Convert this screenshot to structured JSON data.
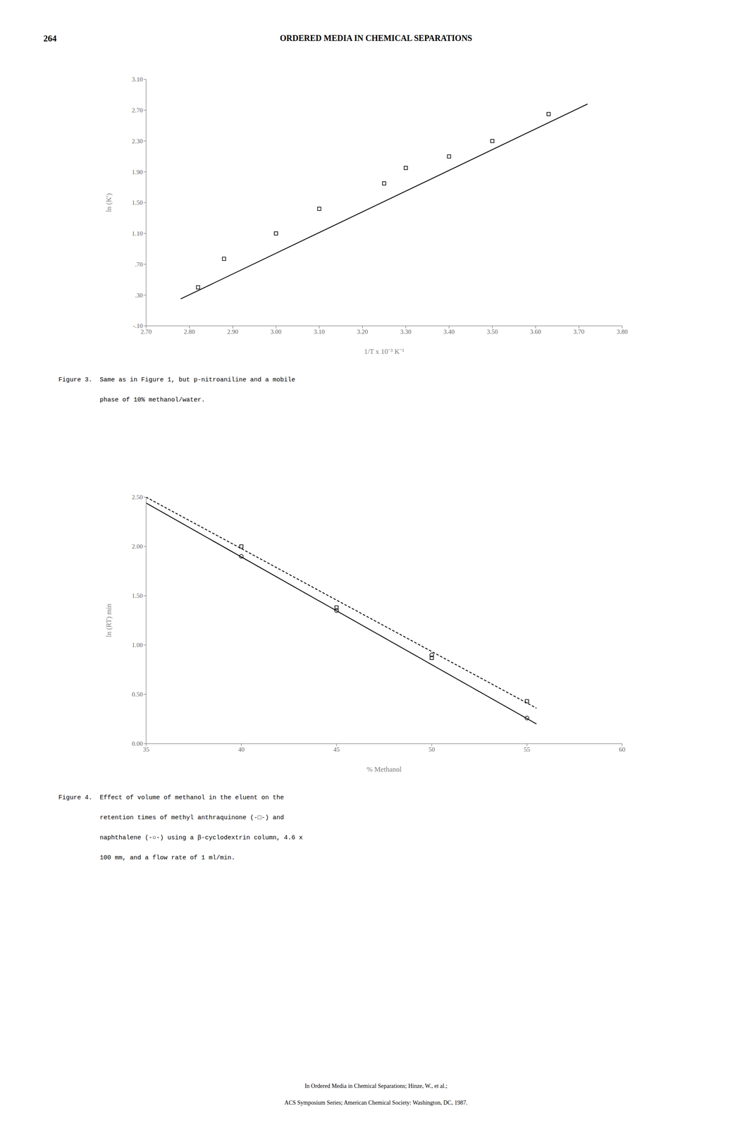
{
  "page_number": "264",
  "header": "ORDERED MEDIA IN CHEMICAL SEPARATIONS",
  "footer": [
    "In Ordered Media in Chemical Separations; Hinze, W., et al.;",
    "ACS Symposium Series; American Chemical Society: Washington, DC, 1987."
  ],
  "chart_data": [
    {
      "type": "scatter",
      "xlabel": "1/T x 10⁻³ K⁻¹",
      "ylabel": "ln (Kʹ)",
      "grid": false,
      "xlim": [
        2.7,
        3.8
      ],
      "xticks": [
        {
          "value": 2.7,
          "label": "2.70"
        },
        {
          "value": 2.8,
          "label": "2.80"
        },
        {
          "value": 2.9,
          "label": "2.90"
        },
        {
          "value": 3.0,
          "label": "3.00"
        },
        {
          "value": 3.1,
          "label": "3.10"
        },
        {
          "value": 3.2,
          "label": "3.20"
        },
        {
          "value": 3.3,
          "label": "3.30"
        },
        {
          "value": 3.4,
          "label": "3.40"
        },
        {
          "value": 3.5,
          "label": "3.50"
        },
        {
          "value": 3.6,
          "label": "3.60"
        },
        {
          "value": 3.7,
          "label": "3.70"
        },
        {
          "value": 3.8,
          "label": "3.80"
        }
      ],
      "ylim": [
        -0.1,
        3.1
      ],
      "yticks": [
        {
          "value": -0.1,
          "label": "-.10"
        },
        {
          "value": 0.3,
          "label": ".30"
        },
        {
          "value": 0.7,
          "label": ".70"
        },
        {
          "value": 1.1,
          "label": "1.10"
        },
        {
          "value": 1.5,
          "label": "1.50"
        },
        {
          "value": 1.9,
          "label": "1.90"
        },
        {
          "value": 2.3,
          "label": "2.30"
        },
        {
          "value": 2.7,
          "label": "2.70"
        },
        {
          "value": 3.1,
          "label": "3.10"
        }
      ],
      "series": [
        {
          "type": "line",
          "line_style": "solid",
          "color": "#000000",
          "x": [
            2.78,
            3.72
          ],
          "values": [
            0.25,
            2.78
          ]
        },
        {
          "type": "scatter",
          "marker": "square",
          "color": "#000000",
          "x": [
            2.82,
            2.88,
            3.0,
            3.1,
            3.25,
            3.3,
            3.4,
            3.5,
            3.63
          ],
          "values": [
            0.4,
            0.77,
            1.1,
            1.42,
            1.75,
            1.95,
            2.1,
            2.3,
            2.65
          ]
        }
      ],
      "annotations": [
        "Figure 3.  Same as in Figure 1, but p-nitroaniline and a mobile",
        "           phase of 10% methanol/water."
      ]
    },
    {
      "type": "scatter",
      "xlabel": "% Methanol",
      "ylabel": "ln (RT) min",
      "grid": false,
      "xlim": [
        35,
        60
      ],
      "xticks": [
        35,
        40,
        45,
        50,
        55,
        60
      ],
      "ylim": [
        0.0,
        2.5
      ],
      "yticks": [
        {
          "value": 0.0,
          "label": "0.00"
        },
        {
          "value": 0.5,
          "label": "0.50"
        },
        {
          "value": 1.0,
          "label": "1.00"
        },
        {
          "value": 1.5,
          "label": "1.50"
        },
        {
          "value": 2.0,
          "label": "2.00"
        },
        {
          "value": 2.5,
          "label": "2.50"
        }
      ],
      "series": [
        {
          "type": "line",
          "line_style": "solid",
          "color": "#000000",
          "x": [
            35.0,
            55.5
          ],
          "values": [
            2.44,
            0.2
          ]
        },
        {
          "type": "scatter",
          "marker": "circle",
          "color": "#000000",
          "x": [
            40,
            45,
            50,
            55
          ],
          "values": [
            1.9,
            1.35,
            0.9,
            0.26
          ]
        },
        {
          "type": "line",
          "line_style": "dashed",
          "color": "#000000",
          "x": [
            35.0,
            55.5
          ],
          "values": [
            2.5,
            0.36
          ]
        },
        {
          "type": "scatter",
          "marker": "square",
          "color": "#000000",
          "x": [
            40,
            45,
            50,
            55
          ],
          "values": [
            2.0,
            1.38,
            0.87,
            0.43
          ]
        }
      ],
      "annotations": [
        "Figure 4.  Effect of volume of methanol in the eluent on the",
        "           retention times of methyl anthraquinone (-□-) and",
        "           naphthalene (-○-) using a β-cyclodextrin column, 4.6 x",
        "           100 mm, and a flow rate of 1 ml/min."
      ]
    }
  ]
}
